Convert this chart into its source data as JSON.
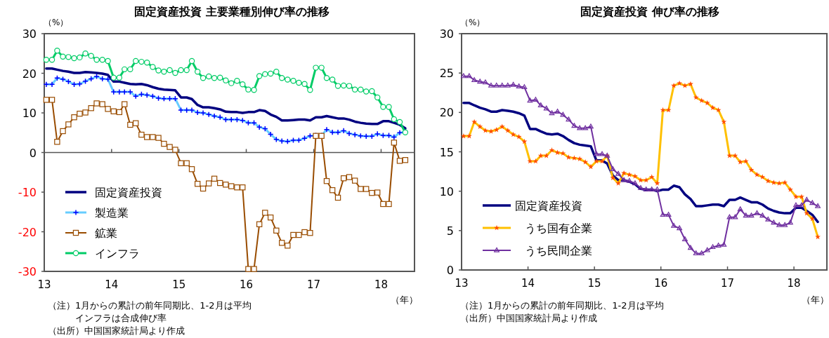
{
  "chart_data": [
    {
      "type": "line",
      "title": "固定資産投資 主要業種別伸び率の推移",
      "ylabel": "（%）",
      "xlabel": "（年）",
      "x": [
        "2013-01-12",
        "2013-02-12",
        "2013-03-12",
        "2013-04-12",
        "2013-05-12",
        "2013-06-12",
        "2013-07-12",
        "2013-08-12",
        "2013-09-12",
        "2013-10-12",
        "2013-11-12",
        "2013-12-12",
        "2014-01-12",
        "2014-02-12",
        "2014-03-12",
        "2014-04-12",
        "2014-05-12",
        "2014-06-12",
        "2014-07-12",
        "2014-08-12",
        "2014-09-12",
        "2014-10-12",
        "2014-11-12",
        "2014-12-12",
        "2015-01-12",
        "2015-02-12",
        "2015-03-12",
        "2015-04-12",
        "2015-05-12",
        "2015-06-12",
        "2015-07-12",
        "2015-08-12",
        "2015-09-12",
        "2015-10-12",
        "2015-11-12",
        "2015-12-12",
        "2016-01-12",
        "2016-02-12",
        "2016-03-12",
        "2016-04-12",
        "2016-05-12",
        "2016-06-12",
        "2016-07-12",
        "2016-08-12",
        "2016-09-12",
        "2016-10-12",
        "2016-11-12",
        "2016-12-12",
        "2017-01-12",
        "2017-02-12",
        "2017-03-12",
        "2017-04-12",
        "2017-05-12",
        "2017-06-12",
        "2017-07-12",
        "2017-08-12",
        "2017-09-12",
        "2017-10-12",
        "2017-11-12",
        "2017-12-12",
        "2018-01-12",
        "2018-02-12",
        "2018-03-12",
        "2018-04-12",
        "2018-05-12"
      ],
      "xlim": [
        "2013-01",
        "2018-07"
      ],
      "xticks": [
        {
          "value": "2013",
          "label": "13"
        },
        {
          "value": "2014",
          "label": "14"
        },
        {
          "value": "2015",
          "label": "15"
        },
        {
          "value": "2016",
          "label": "16"
        },
        {
          "value": "2017",
          "label": "17"
        },
        {
          "value": "2018",
          "label": "18"
        }
      ],
      "ylim": [
        -30,
        30
      ],
      "yticks": [
        -30,
        -20,
        -10,
        0,
        10,
        20,
        30
      ],
      "legend": "bottom left",
      "series": [
        {
          "name": "固定資産投資",
          "color": "#000080",
          "marker": "none",
          "values": [
            21.2,
            21.2,
            20.9,
            20.6,
            20.4,
            20.1,
            20.1,
            20.3,
            20.2,
            20.1,
            19.9,
            19.6,
            17.9,
            17.9,
            17.6,
            17.3,
            17.2,
            17.3,
            17.0,
            16.5,
            16.1,
            15.9,
            15.8,
            15.7,
            13.9,
            13.9,
            13.5,
            12.0,
            11.4,
            11.4,
            11.2,
            10.9,
            10.3,
            10.2,
            10.2,
            10.0,
            10.2,
            10.2,
            10.7,
            10.5,
            9.6,
            9.0,
            8.1,
            8.1,
            8.2,
            8.3,
            8.3,
            8.1,
            8.9,
            8.9,
            9.2,
            8.9,
            8.6,
            8.6,
            8.3,
            7.8,
            7.5,
            7.3,
            7.2,
            7.2,
            7.9,
            7.9,
            7.5,
            7.0,
            6.1
          ]
        },
        {
          "name": "製造業",
          "color": "#66ccff",
          "marker": "cross",
          "values": [
            17.2,
            17.2,
            18.8,
            18.5,
            17.9,
            17.2,
            17.3,
            18.0,
            18.6,
            19.2,
            18.6,
            18.5,
            15.3,
            15.3,
            15.3,
            15.3,
            14.2,
            14.7,
            14.5,
            14.2,
            13.7,
            13.6,
            13.6,
            13.6,
            10.7,
            10.7,
            10.7,
            10.1,
            10.0,
            9.6,
            9.2,
            8.9,
            8.3,
            8.3,
            8.3,
            8.1,
            7.5,
            7.5,
            6.4,
            6.0,
            4.6,
            3.3,
            2.9,
            2.8,
            3.1,
            3.1,
            3.6,
            4.2,
            4.3,
            4.3,
            5.8,
            5.1,
            5.1,
            5.5,
            4.8,
            4.5,
            4.2,
            4.1,
            4.1,
            4.7,
            4.3,
            4.3,
            3.9,
            5.0,
            5.2
          ]
        },
        {
          "name": "鉱業",
          "color": "#994c00",
          "marker": "square",
          "values": [
            13.3,
            13.3,
            2.7,
            5.4,
            7.1,
            8.9,
            9.8,
            10.1,
            11.2,
            12.4,
            12.2,
            11.0,
            10.4,
            10.2,
            12.2,
            7.0,
            7.4,
            4.5,
            3.9,
            3.9,
            3.7,
            2.2,
            1.4,
            0.7,
            -2.7,
            -2.7,
            -4.2,
            -7.9,
            -9.1,
            -7.8,
            -6.6,
            -7.7,
            -8.1,
            -8.5,
            -8.8,
            -8.8,
            -29.4,
            -29.4,
            -18.1,
            -15.2,
            -16.4,
            -19.7,
            -22.8,
            -23.5,
            -20.8,
            -20.8,
            -20.1,
            -20.3,
            4.2,
            4.2,
            -7.2,
            -9.5,
            -11.4,
            -6.5,
            -6.2,
            -7.1,
            -9.2,
            -9.2,
            -10.2,
            -10.1,
            -13.0,
            -13.0,
            2.5,
            -2.1,
            -1.9
          ]
        },
        {
          "name": "インフラ",
          "color": "#00cc66",
          "marker": "circle",
          "values": [
            23.4,
            23.4,
            25.7,
            24.2,
            24.1,
            23.8,
            24.0,
            25.0,
            24.4,
            23.4,
            23.4,
            23.1,
            18.9,
            18.9,
            21.0,
            21.0,
            23.1,
            22.9,
            22.7,
            21.6,
            20.7,
            20.4,
            20.8,
            20.1,
            20.8,
            20.8,
            23.1,
            20.4,
            18.8,
            19.2,
            18.8,
            18.9,
            18.2,
            17.5,
            18.1,
            17.2,
            15.9,
            15.8,
            19.3,
            19.8,
            19.9,
            20.4,
            18.8,
            18.4,
            18.1,
            17.6,
            17.3,
            15.8,
            21.4,
            21.4,
            18.8,
            18.4,
            16.8,
            16.9,
            16.8,
            15.9,
            15.9,
            15.4,
            15.5,
            13.9,
            11.5,
            11.5,
            8.4,
            7.7,
            5.1
          ]
        }
      ],
      "annotations": [
        "（注）1月からの累計の前年同期比、1-2月は平均",
        "　　　インフラは合成伸び率",
        "（出所）中国国家統計局より作成"
      ]
    },
    {
      "type": "line",
      "title": "固定資産投資 伸び率の推移",
      "ylabel": "（%）",
      "xlabel": "（年）",
      "x": [
        "2013-01-12",
        "2013-02-12",
        "2013-03-12",
        "2013-04-12",
        "2013-05-12",
        "2013-06-12",
        "2013-07-12",
        "2013-08-12",
        "2013-09-12",
        "2013-10-12",
        "2013-11-12",
        "2013-12-12",
        "2014-01-12",
        "2014-02-12",
        "2014-03-12",
        "2014-04-12",
        "2014-05-12",
        "2014-06-12",
        "2014-07-12",
        "2014-08-12",
        "2014-09-12",
        "2014-10-12",
        "2014-11-12",
        "2014-12-12",
        "2015-01-12",
        "2015-02-12",
        "2015-03-12",
        "2015-04-12",
        "2015-05-12",
        "2015-06-12",
        "2015-07-12",
        "2015-08-12",
        "2015-09-12",
        "2015-10-12",
        "2015-11-12",
        "2015-12-12",
        "2016-01-12",
        "2016-02-12",
        "2016-03-12",
        "2016-04-12",
        "2016-05-12",
        "2016-06-12",
        "2016-07-12",
        "2016-08-12",
        "2016-09-12",
        "2016-10-12",
        "2016-11-12",
        "2016-12-12",
        "2017-01-12",
        "2017-02-12",
        "2017-03-12",
        "2017-04-12",
        "2017-05-12",
        "2017-06-12",
        "2017-07-12",
        "2017-08-12",
        "2017-09-12",
        "2017-10-12",
        "2017-11-12",
        "2017-12-12",
        "2018-01-12",
        "2018-02-12",
        "2018-03-12",
        "2018-04-12",
        "2018-05-12"
      ],
      "xlim": [
        "2013-01",
        "2018-07"
      ],
      "xticks": [
        {
          "value": "2013",
          "label": "13"
        },
        {
          "value": "2014",
          "label": "14"
        },
        {
          "value": "2015",
          "label": "15"
        },
        {
          "value": "2016",
          "label": "16"
        },
        {
          "value": "2017",
          "label": "17"
        },
        {
          "value": "2018",
          "label": "18"
        }
      ],
      "ylim": [
        0,
        30
      ],
      "yticks": [
        0,
        5,
        10,
        15,
        20,
        25,
        30
      ],
      "legend": "bottom left",
      "series": [
        {
          "name": "固定資産投資",
          "color": "#000080",
          "marker": "none",
          "values": [
            21.2,
            21.2,
            20.9,
            20.6,
            20.4,
            20.1,
            20.1,
            20.3,
            20.2,
            20.1,
            19.9,
            19.6,
            17.9,
            17.9,
            17.6,
            17.3,
            17.2,
            17.3,
            17.0,
            16.5,
            16.1,
            15.9,
            15.8,
            15.7,
            13.9,
            13.9,
            13.5,
            12.0,
            11.4,
            11.4,
            11.2,
            10.9,
            10.3,
            10.2,
            10.2,
            10.0,
            10.2,
            10.2,
            10.7,
            10.5,
            9.6,
            9.0,
            8.1,
            8.1,
            8.2,
            8.3,
            8.3,
            8.1,
            8.9,
            8.9,
            9.2,
            8.9,
            8.6,
            8.6,
            8.3,
            7.8,
            7.5,
            7.3,
            7.2,
            7.2,
            7.9,
            7.9,
            7.5,
            7.0,
            6.1
          ]
        },
        {
          "name": "うち国有企業",
          "color": "#ffc000",
          "marker": "star",
          "values": [
            17.0,
            17.0,
            18.8,
            18.2,
            17.7,
            17.6,
            17.8,
            18.2,
            17.7,
            17.2,
            16.9,
            16.3,
            13.8,
            13.8,
            14.5,
            14.5,
            15.2,
            14.9,
            14.8,
            14.3,
            14.2,
            14.1,
            13.7,
            13.1,
            13.8,
            13.8,
            14.5,
            11.7,
            11.0,
            12.3,
            12.1,
            11.9,
            11.4,
            11.4,
            11.8,
            11.0,
            20.3,
            20.3,
            23.4,
            23.7,
            23.4,
            23.6,
            21.9,
            21.5,
            21.2,
            20.6,
            20.3,
            18.8,
            14.5,
            14.5,
            13.7,
            13.8,
            12.7,
            12.1,
            11.8,
            11.3,
            11.1,
            11.0,
            11.1,
            10.2,
            9.3,
            9.3,
            7.2,
            6.5,
            4.2
          ]
        },
        {
          "name": "うち民間企業",
          "color": "#7030a0",
          "marker": "triangle",
          "values": [
            24.6,
            24.6,
            24.1,
            23.9,
            23.8,
            23.4,
            23.4,
            23.4,
            23.4,
            23.5,
            23.3,
            23.2,
            21.5,
            21.6,
            20.9,
            20.5,
            19.9,
            20.1,
            19.7,
            19.1,
            18.3,
            18.0,
            18.0,
            18.2,
            14.7,
            14.7,
            14.5,
            12.8,
            12.2,
            11.4,
            11.3,
            11.0,
            10.4,
            10.2,
            10.2,
            10.2,
            7.0,
            7.0,
            5.6,
            5.3,
            3.9,
            2.8,
            2.1,
            2.1,
            2.5,
            2.9,
            3.1,
            3.2,
            6.7,
            6.7,
            7.7,
            6.9,
            6.9,
            7.2,
            6.9,
            6.4,
            6.0,
            5.7,
            5.7,
            6.0,
            8.2,
            8.2,
            8.9,
            8.5,
            8.1
          ]
        }
      ],
      "annotations": [
        "（注）1月からの累計の前年同期比、1-2月は平均",
        "（出所）中国国家統計局より作成"
      ]
    }
  ]
}
